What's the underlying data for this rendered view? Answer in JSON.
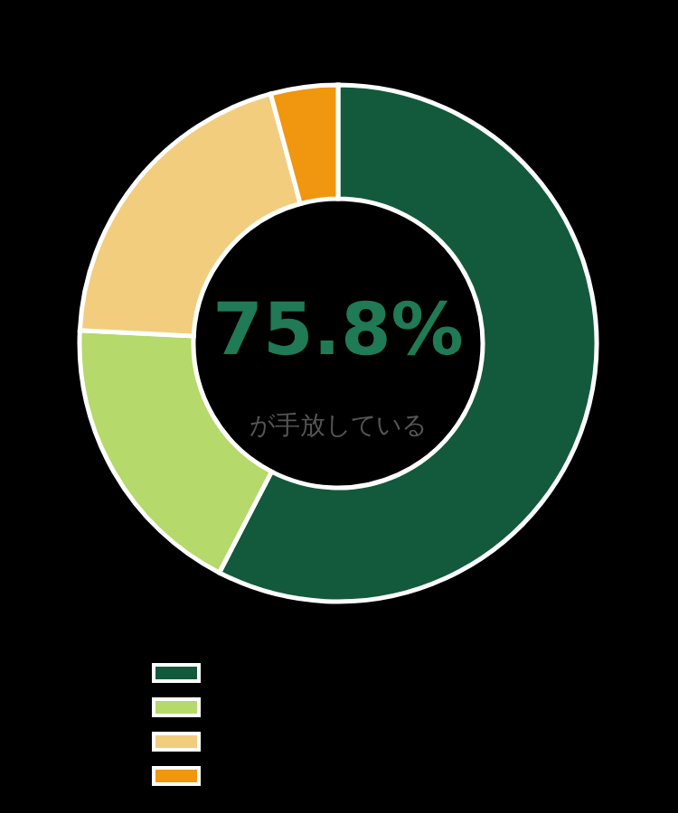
{
  "chart_data": {
    "type": "donut",
    "categories": [
      null,
      null,
      null,
      null
    ],
    "values": [
      57.6,
      18.2,
      20.0,
      4.2
    ],
    "colors": [
      "#135a3c",
      "#b5d96a",
      "#f2cd7d",
      "#f0960f"
    ],
    "annotations": [
      "75.8%",
      "が手放している"
    ]
  }
}
